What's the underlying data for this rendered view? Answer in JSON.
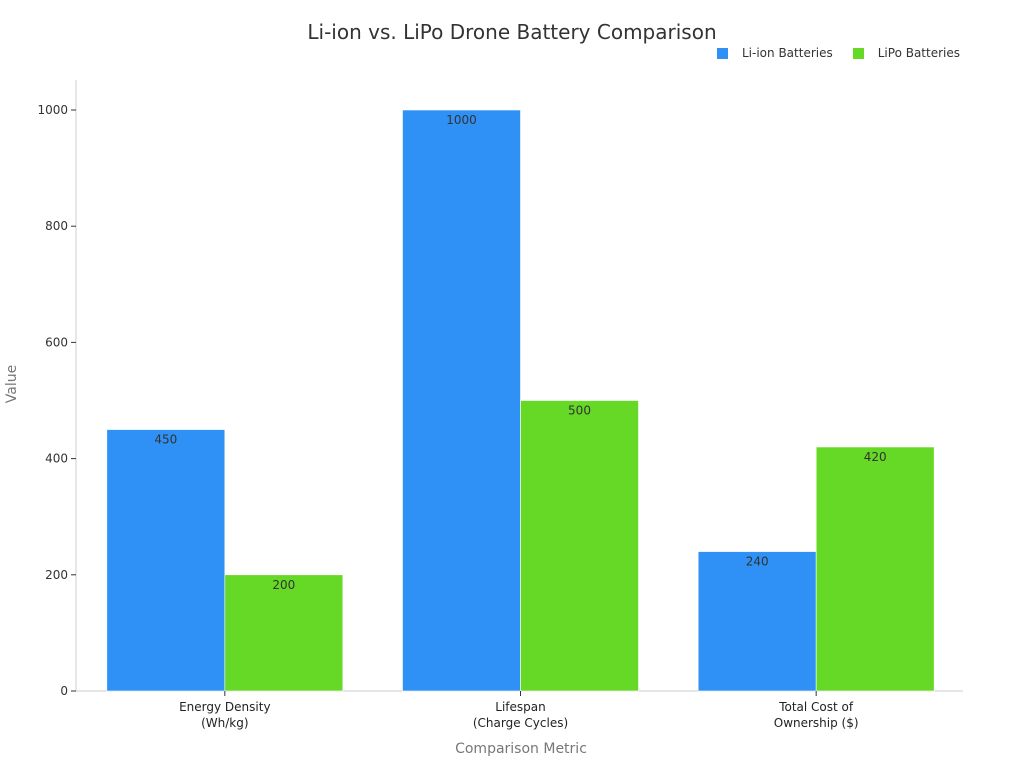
{
  "chart_data": {
    "type": "bar",
    "title": "Li-ion vs. LiPo Drone Battery Comparison",
    "xlabel": "Comparison Metric",
    "ylabel": "Value",
    "categories": [
      "Energy Density\n(Wh/kg)",
      "Lifespan\n(Charge Cycles)",
      "Total Cost of\nOwnership ($)"
    ],
    "series": [
      {
        "name": "Li-ion Batteries",
        "color": "#2f91f5",
        "values": [
          450,
          1000,
          240
        ]
      },
      {
        "name": "LiPo Batteries",
        "color": "#66d926",
        "values": [
          200,
          500,
          420
        ]
      }
    ],
    "ylim": [
      0,
      1000
    ],
    "yticks": [
      0,
      200,
      400,
      600,
      800,
      1000
    ],
    "grid": false,
    "legend_position": "top-right",
    "data_labels": true
  },
  "header": {
    "title": "Li-ion vs. LiPo Drone Battery Comparison"
  },
  "legend": {
    "items": [
      {
        "label": "Li-ion Batteries",
        "color": "#2f91f5"
      },
      {
        "label": "LiPo Batteries",
        "color": "#66d926"
      }
    ]
  },
  "axes": {
    "xlabel": "Comparison Metric",
    "ylabel": "Value"
  }
}
